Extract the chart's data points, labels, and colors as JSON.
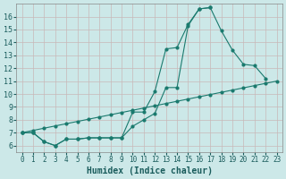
{
  "xlabel": "Humidex (Indice chaleur)",
  "bg_color": "#cce8e8",
  "grid_color": "#c8b8b8",
  "line_color": "#1a7a6e",
  "xlim": [
    -0.5,
    23.5
  ],
  "ylim": [
    5.5,
    17.0
  ],
  "xticks": [
    0,
    1,
    2,
    3,
    4,
    5,
    6,
    7,
    8,
    9,
    10,
    11,
    12,
    13,
    14,
    15,
    16,
    17,
    18,
    19,
    20,
    21,
    22,
    23
  ],
  "yticks": [
    6,
    7,
    8,
    9,
    10,
    11,
    12,
    13,
    14,
    15,
    16
  ],
  "line1_x": [
    0,
    1,
    2,
    3,
    4,
    5,
    6,
    7,
    8,
    9,
    10,
    11,
    12,
    13,
    14,
    15,
    16,
    17,
    18,
    19,
    20,
    21,
    22
  ],
  "line1_y": [
    7.0,
    7.0,
    6.3,
    6.0,
    6.5,
    6.5,
    6.6,
    6.6,
    6.6,
    6.6,
    7.5,
    8.0,
    8.5,
    10.5,
    10.5,
    15.3,
    16.6,
    16.7,
    14.9,
    13.4,
    12.3,
    12.2,
    11.2
  ],
  "line2_x": [
    0,
    1,
    2,
    3,
    4,
    5,
    6,
    7,
    8,
    9,
    10,
    11,
    12,
    13,
    14,
    15,
    16,
    17
  ],
  "line2_y": [
    7.0,
    7.0,
    6.3,
    6.0,
    6.5,
    6.5,
    6.6,
    6.6,
    6.6,
    6.6,
    8.6,
    8.6,
    10.2,
    13.5,
    13.6,
    15.4,
    16.6,
    16.7
  ],
  "line3_x": [
    0,
    1,
    2,
    3,
    4,
    5,
    6,
    7,
    8,
    9,
    10,
    11,
    12,
    13,
    14,
    15,
    16,
    17,
    18,
    19,
    20,
    21,
    22,
    23
  ],
  "line3_y": [
    7.0,
    7.174,
    7.348,
    7.522,
    7.696,
    7.87,
    8.043,
    8.217,
    8.391,
    8.565,
    8.739,
    8.913,
    9.087,
    9.261,
    9.435,
    9.609,
    9.783,
    9.957,
    10.13,
    10.304,
    10.478,
    10.652,
    10.826,
    11.0
  ]
}
